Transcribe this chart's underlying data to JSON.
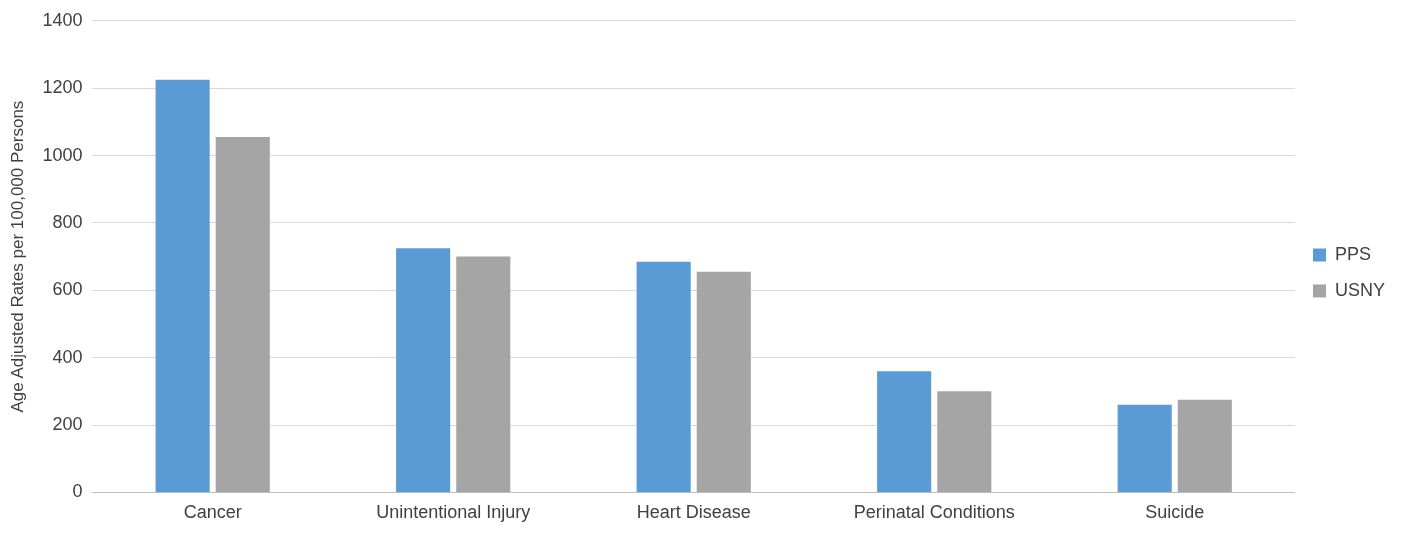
{
  "chart_data": {
    "type": "bar",
    "ylabel": "Age Adjusted Rates per 100,000 Persons",
    "categories": [
      "Cancer",
      "Unintentional Injury",
      "Heart Disease",
      "Perinatal Conditions",
      "Suicide"
    ],
    "series": [
      {
        "name": "PPS",
        "color": "#5b9bd5",
        "values": [
          1225,
          725,
          685,
          360,
          260
        ]
      },
      {
        "name": "USNY",
        "color": "#a5a5a5",
        "values": [
          1055,
          700,
          655,
          300,
          275
        ]
      }
    ],
    "ylim": [
      0,
      1400
    ],
    "yticks": [
      0,
      200,
      400,
      600,
      800,
      1000,
      1200,
      1400
    ],
    "grid": "y",
    "legend": "right"
  }
}
